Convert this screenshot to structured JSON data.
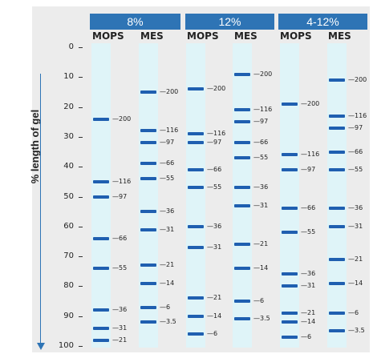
{
  "gel_groups": [
    {
      "label": "8%",
      "lanes": [
        {
          "label": "MOPS",
          "bands": [
            {
              "pos": 24,
              "mw": "200"
            },
            {
              "pos": 45,
              "mw": "116"
            },
            {
              "pos": 50,
              "mw": "97"
            },
            {
              "pos": 64,
              "mw": "66"
            },
            {
              "pos": 74,
              "mw": "55"
            },
            {
              "pos": 88,
              "mw": "36"
            },
            {
              "pos": 94,
              "mw": "31"
            },
            {
              "pos": 98,
              "mw": "21"
            }
          ]
        },
        {
          "label": "MES",
          "bands": [
            {
              "pos": 15,
              "mw": "200"
            },
            {
              "pos": 28,
              "mw": "116"
            },
            {
              "pos": 32,
              "mw": "97"
            },
            {
              "pos": 39,
              "mw": "66"
            },
            {
              "pos": 44,
              "mw": "55"
            },
            {
              "pos": 55,
              "mw": "36"
            },
            {
              "pos": 61,
              "mw": "31"
            },
            {
              "pos": 73,
              "mw": "21"
            },
            {
              "pos": 79,
              "mw": "14"
            },
            {
              "pos": 87,
              "mw": "6"
            },
            {
              "pos": 92,
              "mw": "3.5"
            }
          ]
        }
      ]
    },
    {
      "label": "12%",
      "lanes": [
        {
          "label": "MOPS",
          "bands": [
            {
              "pos": 14,
              "mw": "200"
            },
            {
              "pos": 29,
              "mw": "116"
            },
            {
              "pos": 32,
              "mw": "97"
            },
            {
              "pos": 41,
              "mw": "66"
            },
            {
              "pos": 47,
              "mw": "55"
            },
            {
              "pos": 60,
              "mw": "36"
            },
            {
              "pos": 67,
              "mw": "31"
            },
            {
              "pos": 84,
              "mw": "21"
            },
            {
              "pos": 90,
              "mw": "14"
            },
            {
              "pos": 96,
              "mw": "6"
            }
          ]
        },
        {
          "label": "MES",
          "bands": [
            {
              "pos": 9,
              "mw": "200"
            },
            {
              "pos": 21,
              "mw": "116"
            },
            {
              "pos": 25,
              "mw": "97"
            },
            {
              "pos": 32,
              "mw": "66"
            },
            {
              "pos": 37,
              "mw": "55"
            },
            {
              "pos": 47,
              "mw": "36"
            },
            {
              "pos": 53,
              "mw": "31"
            },
            {
              "pos": 66,
              "mw": "21"
            },
            {
              "pos": 74,
              "mw": "14"
            },
            {
              "pos": 85,
              "mw": "6"
            },
            {
              "pos": 91,
              "mw": "3.5"
            }
          ]
        }
      ]
    },
    {
      "label": "4-12%",
      "lanes": [
        {
          "label": "MOPS",
          "bands": [
            {
              "pos": 19,
              "mw": "200"
            },
            {
              "pos": 36,
              "mw": "116"
            },
            {
              "pos": 41,
              "mw": "97"
            },
            {
              "pos": 54,
              "mw": "66"
            },
            {
              "pos": 62,
              "mw": "55"
            },
            {
              "pos": 76,
              "mw": "36"
            },
            {
              "pos": 80,
              "mw": "31"
            },
            {
              "pos": 89,
              "mw": "21"
            },
            {
              "pos": 92,
              "mw": "14"
            },
            {
              "pos": 97,
              "mw": "6"
            }
          ]
        },
        {
          "label": "MES",
          "bands": [
            {
              "pos": 11,
              "mw": "200"
            },
            {
              "pos": 23,
              "mw": "116"
            },
            {
              "pos": 27,
              "mw": "97"
            },
            {
              "pos": 35,
              "mw": "66"
            },
            {
              "pos": 41,
              "mw": "55"
            },
            {
              "pos": 54,
              "mw": "36"
            },
            {
              "pos": 60,
              "mw": "31"
            },
            {
              "pos": 71,
              "mw": "21"
            },
            {
              "pos": 79,
              "mw": "14"
            },
            {
              "pos": 89,
              "mw": "6"
            },
            {
              "pos": 95,
              "mw": "3.5"
            }
          ]
        }
      ]
    }
  ],
  "y_axis": {
    "label": "% length of gel",
    "ticks": [
      "0",
      "10",
      "20",
      "30",
      "40",
      "50",
      "60",
      "70",
      "80",
      "90",
      "100"
    ]
  },
  "colors": {
    "header_bg": "#2e74b5",
    "lane_bg": "#dff4f8",
    "band": "#1f5fb0",
    "panel_bg": "#ececec"
  }
}
